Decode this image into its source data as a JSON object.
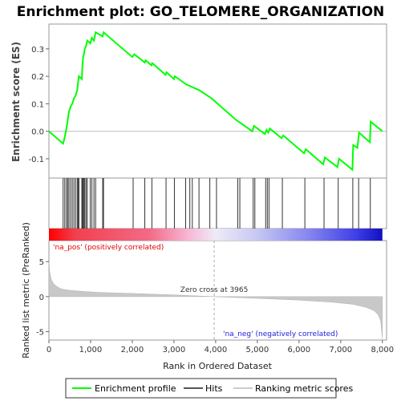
{
  "title": "Enrichment plot: GO_TELOMERE_ORGANIZATION",
  "chart_data": [
    {
      "type": "line",
      "panel": "enrichment",
      "ylabel": "Enrichment score (ES)",
      "xlim": [
        0,
        8100
      ],
      "ylim": [
        -0.17,
        0.39
      ],
      "yticks": [
        -0.1,
        0.0,
        0.1,
        0.2,
        0.3
      ],
      "ytick_labels": [
        "-0.1",
        "0.0",
        "0.1",
        "0.2",
        "0.3"
      ],
      "series_color": "#00ff00",
      "points": [
        [
          0,
          0.0
        ],
        [
          340,
          -0.045
        ],
        [
          380,
          -0.02
        ],
        [
          420,
          0.01
        ],
        [
          450,
          0.04
        ],
        [
          480,
          0.07
        ],
        [
          520,
          0.09
        ],
        [
          560,
          0.1
        ],
        [
          600,
          0.12
        ],
        [
          640,
          0.13
        ],
        [
          680,
          0.15
        ],
        [
          700,
          0.18
        ],
        [
          720,
          0.2
        ],
        [
          790,
          0.19
        ],
        [
          800,
          0.23
        ],
        [
          820,
          0.27
        ],
        [
          840,
          0.28
        ],
        [
          860,
          0.3
        ],
        [
          890,
          0.31
        ],
        [
          920,
          0.33
        ],
        [
          990,
          0.32
        ],
        [
          1030,
          0.34
        ],
        [
          1080,
          0.33
        ],
        [
          1120,
          0.36
        ],
        [
          1290,
          0.345
        ],
        [
          1310,
          0.36
        ],
        [
          2000,
          0.27
        ],
        [
          2050,
          0.28
        ],
        [
          2300,
          0.25
        ],
        [
          2320,
          0.258
        ],
        [
          2460,
          0.24
        ],
        [
          2480,
          0.248
        ],
        [
          2800,
          0.205
        ],
        [
          2820,
          0.215
        ],
        [
          3000,
          0.19
        ],
        [
          3020,
          0.2
        ],
        [
          3300,
          0.17
        ],
        [
          3600,
          0.15
        ],
        [
          3900,
          0.12
        ],
        [
          4500,
          0.04
        ],
        [
          4600,
          0.03
        ],
        [
          4880,
          0.0
        ],
        [
          4920,
          0.02
        ],
        [
          5180,
          -0.01
        ],
        [
          5220,
          0.005
        ],
        [
          5260,
          -0.005
        ],
        [
          5300,
          0.01
        ],
        [
          5580,
          -0.025
        ],
        [
          5620,
          -0.015
        ],
        [
          6120,
          -0.08
        ],
        [
          6160,
          -0.065
        ],
        [
          6580,
          -0.12
        ],
        [
          6620,
          -0.095
        ],
        [
          6920,
          -0.13
        ],
        [
          6960,
          -0.1
        ],
        [
          7280,
          -0.14
        ],
        [
          7300,
          -0.05
        ],
        [
          7400,
          -0.06
        ],
        [
          7440,
          -0.005
        ],
        [
          7700,
          -0.04
        ],
        [
          7720,
          0.035
        ],
        [
          8000,
          0.0
        ]
      ]
    },
    {
      "type": "hits",
      "panel": "hits",
      "xlim": [
        0,
        8100
      ],
      "hit_positions": [
        340,
        380,
        420,
        450,
        480,
        520,
        560,
        600,
        640,
        680,
        700,
        720,
        790,
        800,
        820,
        840,
        860,
        890,
        920,
        990,
        1030,
        1080,
        1120,
        1290,
        1310,
        2020,
        2300,
        2470,
        2810,
        3010,
        3280,
        3380,
        3440,
        3600,
        3860,
        4020,
        4530,
        4580,
        4900,
        4940,
        5200,
        5240,
        5280,
        5600,
        6140,
        6600,
        6940,
        7290,
        7430,
        7710
      ]
    },
    {
      "type": "area",
      "panel": "ranked_list",
      "ylabel": "Ranked list metric (PreRanked)",
      "xlabel": "Rank in Ordered Dataset",
      "xlim": [
        0,
        8100
      ],
      "ylim": [
        -6.2,
        8
      ],
      "xticks": [
        0,
        1000,
        2000,
        3000,
        4000,
        5000,
        6000,
        7000,
        8000
      ],
      "xtick_labels": [
        "0",
        "1,000",
        "2,000",
        "3,000",
        "4,000",
        "5,000",
        "6,000",
        "7,000",
        "8,000"
      ],
      "yticks": [
        -5,
        0,
        5
      ],
      "ytick_labels": [
        "-5",
        "0",
        "5"
      ],
      "zero_cross": 3965,
      "zero_cross_label": "Zero cross at 3965",
      "pos_label": "'na_pos' (positively correlated)",
      "neg_label": "'na_neg' (negatively correlated)",
      "curve": [
        [
          0,
          5.0
        ],
        [
          20,
          3.5
        ],
        [
          60,
          2.4
        ],
        [
          120,
          1.8
        ],
        [
          200,
          1.4
        ],
        [
          300,
          1.1
        ],
        [
          500,
          0.9
        ],
        [
          800,
          0.75
        ],
        [
          1200,
          0.6
        ],
        [
          2000,
          0.45
        ],
        [
          3000,
          0.25
        ],
        [
          3965,
          0.0
        ],
        [
          5000,
          -0.25
        ],
        [
          6000,
          -0.5
        ],
        [
          6800,
          -0.8
        ],
        [
          7300,
          -1.1
        ],
        [
          7600,
          -1.5
        ],
        [
          7800,
          -2.0
        ],
        [
          7900,
          -2.6
        ],
        [
          7960,
          -3.5
        ],
        [
          8000,
          -6.0
        ]
      ]
    }
  ],
  "legend": {
    "items": [
      {
        "label": "Enrichment profile",
        "color": "#00ff00"
      },
      {
        "label": "Hits",
        "color": "#555555"
      },
      {
        "label": "Ranking metric scores",
        "color": "#cccccc"
      }
    ]
  }
}
